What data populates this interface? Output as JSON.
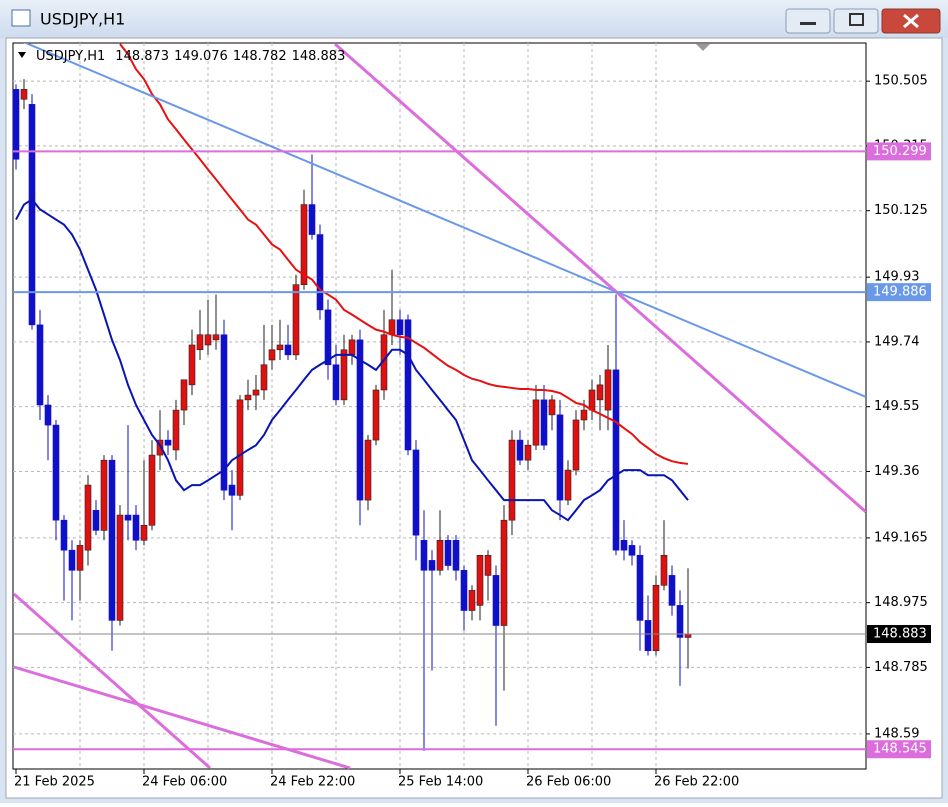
{
  "chart_data": {
    "type": "candlestick",
    "title": "USDJPY,H1",
    "categories": [
      "21 Feb 2025",
      null,
      null,
      null,
      null,
      null,
      null,
      null,
      null,
      null,
      null,
      null,
      null,
      null,
      null,
      null,
      "24 Feb 06:00",
      null,
      null,
      null,
      null,
      null,
      null,
      null,
      null,
      null,
      null,
      null,
      null,
      null,
      null,
      null,
      "24 Feb 22:00",
      null,
      null,
      null,
      null,
      null,
      null,
      null,
      null,
      null,
      null,
      null,
      null,
      null,
      null,
      null,
      "25 Feb 14:00",
      null,
      null,
      null,
      null,
      null,
      null,
      null,
      null,
      null,
      null,
      null,
      null,
      null,
      null,
      null,
      "26 Feb 06:00",
      null,
      null,
      null,
      null,
      null,
      null,
      null,
      null,
      null,
      null,
      null,
      null,
      null,
      null,
      null,
      "26 Feb 22:00",
      null,
      null,
      null,
      null
    ],
    "open": [
      150.481,
      150.452,
      150.437,
      149.79,
      149.555,
      149.496,
      149.217,
      149.129,
      149.07,
      149.129,
      149.246,
      149.187,
      149.393,
      148.923,
      149.232,
      149.232,
      149.158,
      149.202,
      149.408,
      149.452,
      149.423,
      149.54,
      149.614,
      149.717,
      149.731,
      149.746,
      149.761,
      149.32,
      149.29,
      149.57,
      149.584,
      149.599,
      149.687,
      149.717,
      149.731,
      149.702,
      149.908,
      150.143,
      150.055,
      149.834,
      149.673,
      149.57,
      149.702,
      149.746,
      149.276,
      149.452,
      149.599,
      149.761,
      149.805,
      149.805,
      149.423,
      149.158,
      149.099,
      149.07,
      149.158,
      149.158,
      149.07,
      148.952,
      148.967,
      149.055,
      149.055,
      148.908,
      149.217,
      149.452,
      149.393,
      149.437,
      149.57,
      149.526,
      149.526,
      149.276,
      149.364,
      149.511,
      149.54,
      149.57,
      149.54,
      149.658,
      149.158,
      149.143,
      149.114,
      148.923,
      148.834,
      149.026,
      149.055,
      148.967,
      148.873
    ],
    "high": [
      150.496,
      150.511,
      150.467,
      149.834,
      149.584,
      149.511,
      149.232,
      149.158,
      149.158,
      149.349,
      149.276,
      149.408,
      149.408,
      149.261,
      149.496,
      149.261,
      149.393,
      149.452,
      149.54,
      149.481,
      149.57,
      149.629,
      149.776,
      149.834,
      149.864,
      149.879,
      149.805,
      149.364,
      149.584,
      149.629,
      149.643,
      149.79,
      149.79,
      149.805,
      149.79,
      149.937,
      150.187,
      150.29,
      150.084,
      149.864,
      149.731,
      149.761,
      149.761,
      149.776,
      149.467,
      149.614,
      149.834,
      149.952,
      149.834,
      149.82,
      149.452,
      149.246,
      149.129,
      149.246,
      149.173,
      149.173,
      149.084,
      149.026,
      149.114,
      149.129,
      149.084,
      149.261,
      149.481,
      149.481,
      149.452,
      149.614,
      149.614,
      149.584,
      149.57,
      149.393,
      149.54,
      149.57,
      149.629,
      149.643,
      149.731,
      149.879,
      149.217,
      149.158,
      149.143,
      148.996,
      149.055,
      149.217,
      149.084,
      149.011,
      149.076
    ],
    "low": [
      150.246,
      150.423,
      149.776,
      149.511,
      149.393,
      149.158,
      148.981,
      148.923,
      148.981,
      149.084,
      149.173,
      149.158,
      148.834,
      148.908,
      149.158,
      149.129,
      149.143,
      149.187,
      149.364,
      149.408,
      149.393,
      149.496,
      149.584,
      149.687,
      149.702,
      149.717,
      149.276,
      149.187,
      149.276,
      149.54,
      149.54,
      149.57,
      149.658,
      149.687,
      149.687,
      149.687,
      149.893,
      150.04,
      149.805,
      149.629,
      149.555,
      149.555,
      149.673,
      149.202,
      149.246,
      149.437,
      149.57,
      149.731,
      149.702,
      149.408,
      149.099,
      148.54,
      148.776,
      149.055,
      149.07,
      149.04,
      148.893,
      148.923,
      148.923,
      148.981,
      148.614,
      148.717,
      149.173,
      149.379,
      149.364,
      149.423,
      149.423,
      149.481,
      149.217,
      149.261,
      149.349,
      149.481,
      149.511,
      149.481,
      149.481,
      149.114,
      149.099,
      149.084,
      148.834,
      148.82,
      148.82,
      149.011,
      148.937,
      148.731,
      148.782
    ],
    "close": [
      150.276,
      150.481,
      149.79,
      149.555,
      149.496,
      149.217,
      149.129,
      149.07,
      149.143,
      149.32,
      149.187,
      149.393,
      148.923,
      149.232,
      149.217,
      149.158,
      149.202,
      149.408,
      149.452,
      149.437,
      149.54,
      149.629,
      149.731,
      149.761,
      149.761,
      149.761,
      149.305,
      149.29,
      149.57,
      149.584,
      149.599,
      149.673,
      149.717,
      149.731,
      149.702,
      149.908,
      150.143,
      150.055,
      149.834,
      149.673,
      149.57,
      149.717,
      149.746,
      149.276,
      149.452,
      149.599,
      149.761,
      149.805,
      149.761,
      149.423,
      149.173,
      149.07,
      149.07,
      149.158,
      149.084,
      149.07,
      148.952,
      149.011,
      149.114,
      149.114,
      148.908,
      149.217,
      149.452,
      149.393,
      149.437,
      149.57,
      149.437,
      149.57,
      149.276,
      149.364,
      149.511,
      149.54,
      149.599,
      149.614,
      149.658,
      149.129,
      149.129,
      149.114,
      148.923,
      148.834,
      149.026,
      149.114,
      148.967,
      148.873,
      148.883
    ],
    "up_color": "#e01010",
    "down_color": "#1010c8",
    "lines": [
      {
        "color": "#e81010",
        "values": [
          null,
          null,
          null,
          null,
          null,
          null,
          null,
          null,
          null,
          null,
          null,
          null,
          null,
          150.614,
          150.584,
          150.54,
          150.511,
          150.467,
          150.437,
          150.393,
          150.364,
          150.334,
          150.305,
          150.276,
          150.246,
          150.217,
          150.187,
          150.158,
          150.129,
          150.099,
          150.084,
          150.055,
          150.026,
          150.011,
          149.981,
          149.952,
          149.937,
          149.923,
          149.893,
          149.879,
          149.864,
          149.834,
          149.82,
          149.805,
          149.79,
          149.776,
          149.77,
          149.761,
          149.755,
          149.752,
          149.737,
          149.723,
          149.705,
          149.687,
          149.67,
          149.658,
          149.643,
          149.632,
          149.626,
          149.617,
          149.611,
          149.608,
          149.605,
          149.602,
          149.602,
          149.599,
          149.599,
          149.596,
          149.59,
          149.576,
          149.561,
          149.555,
          149.54,
          149.529,
          149.517,
          149.505,
          149.487,
          149.47,
          149.446,
          149.429,
          149.411,
          149.399,
          149.39,
          149.385,
          149.382
        ]
      },
      {
        "color": "#0a14b4",
        "values": [
          150.099,
          150.143,
          150.158,
          150.129,
          150.114,
          150.099,
          150.084,
          150.055,
          150.011,
          149.952,
          149.893,
          149.82,
          149.746,
          149.687,
          149.614,
          149.555,
          149.511,
          149.467,
          149.437,
          149.393,
          149.334,
          149.305,
          149.32,
          149.32,
          149.334,
          149.349,
          149.364,
          149.393,
          149.408,
          149.423,
          149.437,
          149.467,
          149.511,
          149.54,
          149.57,
          149.599,
          149.629,
          149.658,
          149.673,
          149.687,
          149.702,
          149.702,
          149.702,
          149.687,
          149.673,
          149.658,
          149.687,
          149.717,
          149.717,
          149.702,
          149.658,
          149.629,
          149.599,
          149.57,
          149.54,
          149.511,
          149.452,
          149.393,
          149.364,
          149.334,
          149.305,
          149.276,
          149.276,
          149.276,
          149.276,
          149.276,
          149.276,
          149.246,
          149.232,
          149.217,
          149.246,
          149.276,
          149.29,
          149.305,
          149.334,
          149.349,
          149.364,
          149.364,
          149.364,
          149.349,
          149.349,
          149.349,
          149.334,
          149.305,
          149.276
        ]
      }
    ],
    "hlines": [
      {
        "value": 150.299,
        "color": "#dc6ddc"
      },
      {
        "value": 149.886,
        "color": "#6a98e8"
      },
      {
        "value": 148.545,
        "color": "#dc6ddc"
      }
    ],
    "ylim": [
      148.487,
      150.617
    ],
    "yticks": [
      150.505,
      150.315,
      150.125,
      149.93,
      149.74,
      149.55,
      149.36,
      149.165,
      148.975,
      148.785,
      148.59
    ],
    "grid": true
  }
}
